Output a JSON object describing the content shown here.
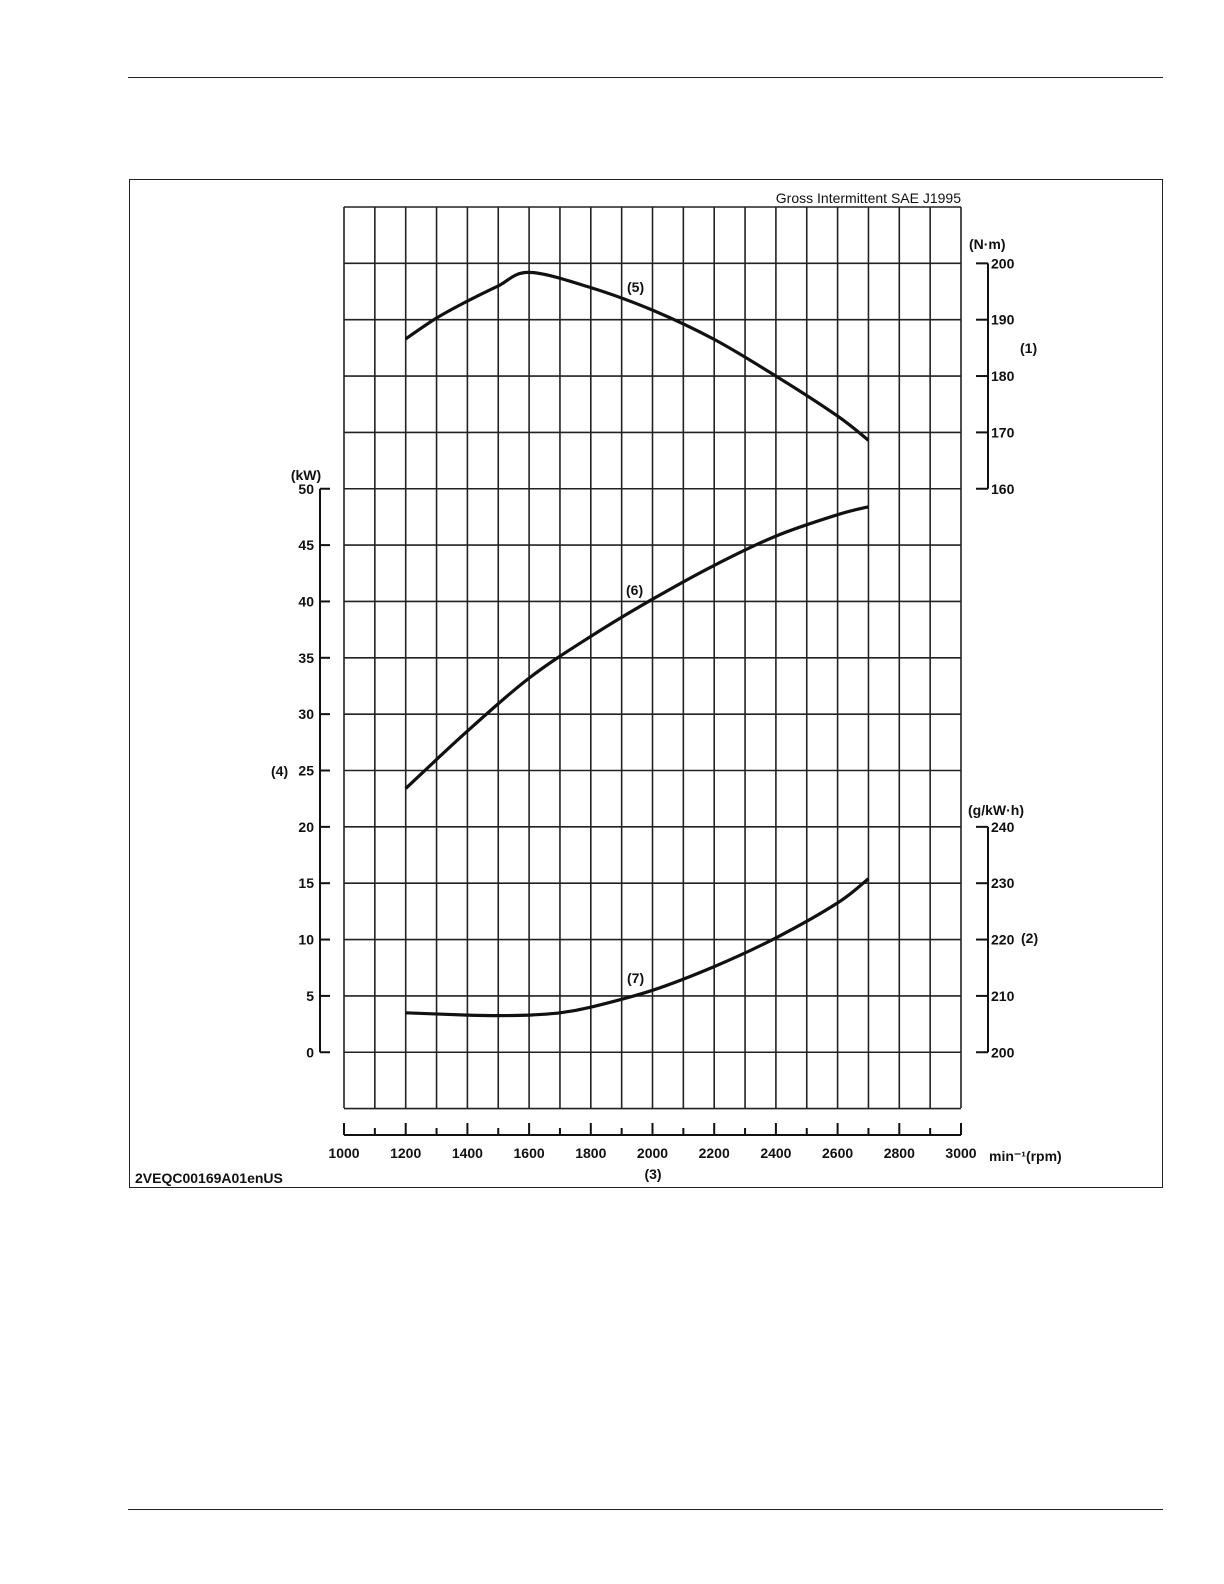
{
  "page": {},
  "chart_data": {
    "type": "line",
    "title": "Gross Intermittent SAE J1995",
    "figure_id": "2VEQC00169A01enUS",
    "x_axis": {
      "unit_label": "min⁻¹(rpm)",
      "callout": "(3)",
      "range": [
        1000,
        3000
      ],
      "tick_labels": [
        "1000",
        "1200",
        "1400",
        "1600",
        "1800",
        "2000",
        "2200",
        "2400",
        "2600",
        "2800",
        "3000"
      ]
    },
    "torque_axis": {
      "unit_label": "(N·m)",
      "callout": "(1)",
      "range": [
        160,
        200
      ],
      "tick_labels": [
        "160",
        "170",
        "180",
        "190",
        "200"
      ]
    },
    "power_axis": {
      "unit_label": "(kW)",
      "callout": "(4)",
      "range": [
        0,
        50
      ],
      "tick_labels": [
        "0",
        "5",
        "10",
        "15",
        "20",
        "25",
        "30",
        "35",
        "40",
        "45",
        "50"
      ]
    },
    "fuel_axis": {
      "unit_label": "(g/kW·h)",
      "callout": "(2)",
      "range": [
        200,
        240
      ],
      "tick_labels": [
        "200",
        "210",
        "220",
        "230",
        "240"
      ]
    },
    "grid": true,
    "series": [
      {
        "label": "(5)",
        "axis": "torque",
        "x": [
          1200,
          1300,
          1400,
          1500,
          1600,
          1800,
          2000,
          2200,
          2400,
          2600,
          2700
        ],
        "y": [
          186.6,
          190.3,
          193.3,
          196.0,
          198.4,
          195.7,
          191.7,
          186.5,
          180.0,
          172.9,
          168.6
        ]
      },
      {
        "label": "(6)",
        "axis": "power",
        "x": [
          1200,
          1400,
          1600,
          1800,
          2000,
          2200,
          2400,
          2600,
          2700
        ],
        "y": [
          23.4,
          28.5,
          33.2,
          36.9,
          40.2,
          43.2,
          45.8,
          47.7,
          48.4
        ]
      },
      {
        "label": "(7)",
        "axis": "fuel",
        "x": [
          1200,
          1400,
          1500,
          1600,
          1700,
          1800,
          2000,
          2200,
          2400,
          2600,
          2700
        ],
        "y": [
          207.0,
          206.6,
          206.5,
          206.6,
          207.0,
          208.0,
          211.0,
          215.2,
          220.3,
          226.5,
          230.8
        ]
      }
    ]
  }
}
